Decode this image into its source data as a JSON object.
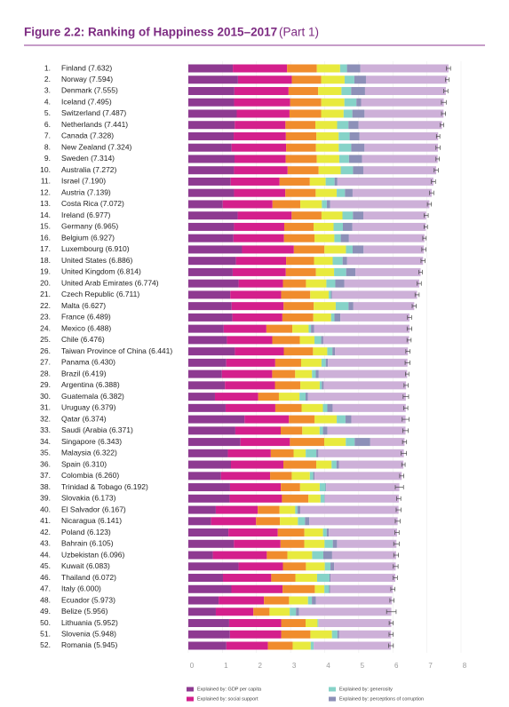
{
  "chart_data": {
    "type": "stacked-bar-horizontal",
    "title": "Figure 2.2: Ranking of Happiness 2015–2017",
    "subtitle": "(Part 1)",
    "ranks": [
      "1.",
      "2.",
      "3.",
      "4.",
      "5.",
      "6.",
      "7.",
      "8.",
      "9.",
      "10.",
      "11.",
      "12.",
      "13.",
      "14.",
      "15.",
      "16.",
      "17.",
      "18.",
      "19.",
      "20.",
      "21.",
      "22.",
      "23.",
      "24.",
      "25.",
      "26.",
      "27.",
      "28.",
      "29.",
      "30.",
      "31.",
      "32.",
      "33.",
      "34.",
      "35.",
      "36.",
      "37.",
      "38.",
      "39.",
      "40.",
      "41.",
      "42.",
      "43.",
      "44.",
      "45.",
      "46.",
      "47.",
      "48.",
      "49.",
      "50.",
      "51.",
      "52."
    ],
    "categories": [
      "Finland (7.632)",
      "Norway (7.594)",
      "Denmark (7.555)",
      "Iceland (7.495)",
      "Switzerland (7.487)",
      "Netherlands (7.441)",
      "Canada (7.328)",
      "New Zealand (7.324)",
      "Sweden (7.314)",
      "Australia (7.272)",
      "Israel (7.190)",
      "Austria (7.139)",
      "Costa Rica (7.072)",
      "Ireland (6.977)",
      "Germany (6.965)",
      "Belgium (6.927)",
      "Luxembourg (6.910)",
      "United States (6.886)",
      "United Kingdom (6.814)",
      "United Arab Emirates (6.774)",
      "Czech Republic (6.711)",
      "Malta (6.627)",
      "France (6.489)",
      "Mexico (6.488)",
      "Chile (6.476)",
      "Taiwan Province of China (6.441)",
      "Panama (6.430)",
      "Brazil (6.419)",
      "Argentina (6.388)",
      "Guatemala (6.382)",
      "Uruguay (6.379)",
      "Qatar (6.374)",
      "Saudi (Arabia (6.371)",
      "Singapore (6.343)",
      "Malaysia (6.322)",
      "Spain (6.310)",
      "Colombia (6.260)",
      "Trinidad & Tobago (6.192)",
      "Slovakia (6.173)",
      "El Salvador (6.167)",
      "Nicaragua (6.141)",
      "Poland (6.123)",
      "Bahrain (6.105)",
      "Uzbekistan (6.096)",
      "Kuwait (6.083)",
      "Thailand (6.072)",
      "Italy (6.000)",
      "Ecuador (5.973)",
      "Belize (5.956)",
      "Lithuania (5.952)",
      "Slovenia (5.948)",
      "Romania (5.945)"
    ],
    "series": [
      {
        "name": "Explained by: GDP per capita",
        "color": "#8e3a91",
        "values": [
          1.305,
          1.456,
          1.351,
          1.343,
          1.42,
          1.361,
          1.33,
          1.268,
          1.355,
          1.34,
          1.244,
          1.341,
          1.01,
          1.448,
          1.34,
          1.324,
          1.576,
          1.398,
          1.301,
          1.475,
          1.233,
          1.27,
          1.293,
          1.038,
          1.131,
          1.365,
          1.112,
          0.986,
          1.073,
          0.781,
          1.093,
          1.649,
          1.379,
          1.529,
          1.161,
          1.251,
          0.96,
          1.223,
          1.21,
          0.806,
          0.668,
          1.176,
          1.338,
          0.719,
          1.474,
          1.016,
          1.264,
          0.889,
          0.807,
          1.197,
          1.219,
          1.116
        ]
      },
      {
        "name": "Explained by: social support",
        "color": "#d41f8c",
        "values": [
          1.592,
          1.582,
          1.59,
          1.644,
          1.549,
          1.488,
          1.532,
          1.601,
          1.501,
          1.573,
          1.433,
          1.504,
          1.459,
          1.583,
          1.474,
          1.483,
          1.52,
          1.471,
          1.559,
          1.301,
          1.489,
          1.525,
          1.466,
          1.252,
          1.331,
          1.436,
          1.438,
          1.474,
          1.468,
          1.268,
          1.459,
          1.303,
          1.331,
          1.451,
          1.258,
          1.538,
          1.439,
          1.492,
          1.537,
          1.231,
          1.319,
          1.448,
          1.366,
          1.584,
          1.301,
          1.417,
          1.501,
          1.33,
          1.101,
          1.527,
          1.506,
          1.219
        ]
      },
      {
        "color": "#f08c2d",
        "values": [
          0.874,
          0.861,
          0.868,
          0.914,
          0.927,
          0.878,
          0.896,
          0.876,
          0.913,
          0.91,
          0.888,
          0.891,
          0.817,
          0.876,
          0.861,
          0.894,
          0.896,
          0.819,
          0.883,
          0.675,
          0.854,
          0.884,
          0.908,
          0.761,
          0.808,
          0.857,
          0.759,
          0.675,
          0.744,
          0.608,
          0.771,
          0.748,
          0.633,
          1.008,
          0.669,
          0.965,
          0.635,
          0.564,
          0.776,
          0.639,
          0.7,
          0.781,
          0.698,
          0.605,
          0.675,
          0.707,
          0.946,
          0.736,
          0.474,
          0.716,
          0.856,
          0.726
        ]
      },
      {
        "color": "#e8ea3e",
        "values": [
          0.681,
          0.686,
          0.683,
          0.677,
          0.66,
          0.638,
          0.653,
          0.669,
          0.659,
          0.647,
          0.464,
          0.617,
          0.632,
          0.614,
          0.586,
          0.583,
          0.632,
          0.547,
          0.533,
          0.599,
          0.543,
          0.645,
          0.52,
          0.479,
          0.431,
          0.418,
          0.597,
          0.493,
          0.57,
          0.604,
          0.625,
          0.654,
          0.509,
          0.631,
          0.356,
          0.449,
          0.531,
          0.575,
          0.354,
          0.461,
          0.527,
          0.546,
          0.594,
          0.724,
          0.554,
          0.637,
          0.281,
          0.556,
          0.593,
          0.35,
          0.633,
          0.528
        ]
      },
      {
        "name": "Explained by: generosity",
        "color": "#86d3c8",
        "values": [
          0.202,
          0.286,
          0.284,
          0.353,
          0.256,
          0.333,
          0.321,
          0.365,
          0.285,
          0.361,
          0.262,
          0.242,
          0.143,
          0.307,
          0.273,
          0.188,
          0.196,
          0.291,
          0.354,
          0.262,
          0.064,
          0.376,
          0.098,
          0.069,
          0.197,
          0.151,
          0.125,
          0.11,
          0.062,
          0.179,
          0.13,
          0.256,
          0.098,
          0.261,
          0.311,
          0.142,
          0.099,
          0.171,
          0.118,
          0.065,
          0.208,
          0.108,
          0.243,
          0.328,
          0.167,
          0.364,
          0.137,
          0.114,
          0.183,
          0.026,
          0.16,
          0.088
        ]
      },
      {
        "name": "Explained by: perceptions of corruption",
        "color": "#8d90b8",
        "values": [
          0.393,
          0.34,
          0.408,
          0.138,
          0.357,
          0.295,
          0.291,
          0.389,
          0.383,
          0.302,
          0.082,
          0.224,
          0.101,
          0.306,
          0.28,
          0.24,
          0.321,
          0.133,
          0.272,
          0.261,
          0.034,
          0.142,
          0.176,
          0.095,
          0.061,
          0.078,
          0.063,
          0.088,
          0.054,
          0.071,
          0.155,
          0.171,
          0.127,
          0.457,
          0.059,
          0.074,
          0.039,
          0.019,
          0.014,
          0.082,
          0.128,
          0.064,
          0.123,
          0.259,
          0.106,
          0.029,
          0.028,
          0.12,
          0.089,
          0.006,
          0.051,
          0.001
        ]
      },
      {
        "color": "#cdb0d8",
        "values": [
          2.585,
          2.383,
          2.371,
          2.426,
          2.318,
          2.448,
          2.305,
          2.156,
          2.218,
          2.139,
          2.817,
          2.32,
          2.91,
          1.843,
          2.151,
          2.215,
          1.769,
          2.227,
          1.912,
          2.201,
          2.494,
          1.785,
          2.028,
          2.794,
          2.517,
          2.136,
          2.336,
          2.593,
          2.417,
          2.871,
          2.146,
          1.593,
          2.294,
          1.006,
          2.508,
          1.891,
          2.557,
          2.148,
          2.164,
          2.883,
          2.591,
          2.0,
          1.743,
          1.877,
          1.806,
          1.902,
          1.843,
          2.228,
          2.709,
          2.13,
          1.523,
          2.267
        ]
      }
    ],
    "totals": [
      7.632,
      7.594,
      7.555,
      7.495,
      7.487,
      7.441,
      7.328,
      7.324,
      7.314,
      7.272,
      7.19,
      7.139,
      7.072,
      6.977,
      6.965,
      6.927,
      6.91,
      6.886,
      6.814,
      6.774,
      6.711,
      6.627,
      6.489,
      6.488,
      6.476,
      6.441,
      6.43,
      6.419,
      6.388,
      6.382,
      6.379,
      6.374,
      6.371,
      6.343,
      6.322,
      6.31,
      6.26,
      6.192,
      6.173,
      6.167,
      6.141,
      6.123,
      6.105,
      6.096,
      6.083,
      6.072,
      6.0,
      5.973,
      5.956,
      5.952,
      5.948,
      5.945
    ],
    "errors": [
      0.06,
      0.05,
      0.06,
      0.07,
      0.06,
      0.05,
      0.05,
      0.06,
      0.05,
      0.06,
      0.06,
      0.06,
      0.06,
      0.06,
      0.05,
      0.05,
      0.06,
      0.06,
      0.05,
      0.06,
      0.06,
      0.06,
      0.06,
      0.07,
      0.06,
      0.06,
      0.07,
      0.05,
      0.06,
      0.08,
      0.06,
      0.1,
      0.08,
      0.06,
      0.08,
      0.05,
      0.06,
      0.12,
      0.06,
      0.07,
      0.07,
      0.06,
      0.08,
      0.07,
      0.07,
      0.06,
      0.06,
      0.06,
      0.14,
      0.06,
      0.06,
      0.07
    ],
    "xlim": [
      0,
      8
    ],
    "xticks": [
      0,
      1,
      2,
      3,
      4,
      5,
      6,
      7,
      8
    ],
    "grid": true
  }
}
